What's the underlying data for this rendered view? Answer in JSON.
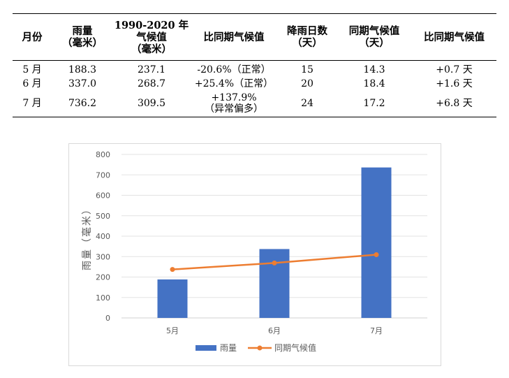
{
  "table": {
    "headers": [
      "月份",
      "雨量\n（毫米）",
      "1990-2020 年\n气候值\n（毫米）",
      "比同期气候值",
      "降雨日数\n（天）",
      "同期气候值\n（天）",
      "比同期气候值"
    ],
    "rows": [
      [
        "5 月",
        "188.3",
        "237.1",
        "-20.6%（正常）",
        "15",
        "14.3",
        "+0.7 天"
      ],
      [
        "6 月",
        "337.0",
        "268.7",
        "+25.4%（正常）",
        "20",
        "18.4",
        "+1.6 天"
      ],
      [
        "7 月",
        "736.2",
        "309.5",
        "+137.9%\n（异常偏多）",
        "24",
        "17.2",
        "+6.8 天"
      ]
    ]
  },
  "chart_data": {
    "type": "bar",
    "categories": [
      "5月",
      "6月",
      "7月"
    ],
    "series": [
      {
        "name": "雨量",
        "type": "bar",
        "values": [
          188.3,
          337.0,
          736.2
        ],
        "color": "#4472C4"
      },
      {
        "name": "同期气候值",
        "type": "line",
        "values": [
          237.1,
          268.7,
          309.5
        ],
        "color": "#ED7D31"
      }
    ],
    "ylabel": "雨量（毫米）",
    "xlabel": "",
    "ylim": [
      0,
      800
    ],
    "yticks": [
      0,
      100,
      200,
      300,
      400,
      500,
      600,
      700,
      800
    ],
    "grid": true,
    "legend": "bottom"
  }
}
